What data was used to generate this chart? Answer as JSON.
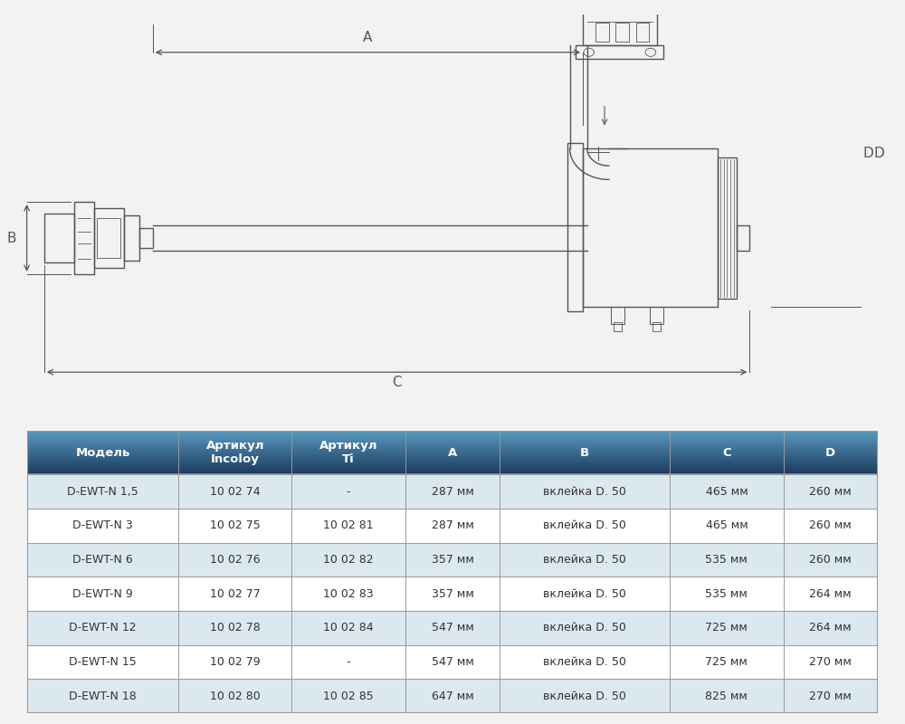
{
  "bg_color": "#f2f2f2",
  "table_header_dark": "#1a3a5c",
  "table_header_light": "#5a9abb",
  "table_row_bg_even": "#dce8f0",
  "table_row_bg_odd": "#ffffff",
  "table_border_color": "#999999",
  "table_text_color_header": "#ffffff",
  "table_text_color_data": "#333333",
  "lc": "#555555",
  "headers": [
    "Модель",
    "Артикул\nIncoloy",
    "Артикул\nTi",
    "A",
    "B",
    "C",
    "D"
  ],
  "col_widths": [
    1.6,
    1.2,
    1.2,
    1.0,
    1.8,
    1.2,
    1.0
  ],
  "rows": [
    [
      "D-EWT-N 1,5",
      "10 02 74",
      "-",
      "287 мм",
      "вклейка D. 50",
      "465 мм",
      "260 мм"
    ],
    [
      "D-EWT-N 3",
      "10 02 75",
      "10 02 81",
      "287 мм",
      "вклейка D. 50",
      "465 мм",
      "260 мм"
    ],
    [
      "D-EWT-N 6",
      "10 02 76",
      "10 02 82",
      "357 мм",
      "вклейка D. 50",
      "535 мм",
      "260 мм"
    ],
    [
      "D-EWT-N 9",
      "10 02 77",
      "10 02 83",
      "357 мм",
      "вклейка D. 50",
      "535 мм",
      "264 мм"
    ],
    [
      "D-EWT-N 12",
      "10 02 78",
      "10 02 84",
      "547 мм",
      "вклейка D. 50",
      "725 мм",
      "264 мм"
    ],
    [
      "D-EWT-N 15",
      "10 02 79",
      "-",
      "547 мм",
      "вклейка D. 50",
      "725 мм",
      "270 мм"
    ],
    [
      "D-EWT-N 18",
      "10 02 80",
      "10 02 85",
      "647 мм",
      "вклейка D. 50",
      "825 мм",
      "270 мм"
    ]
  ]
}
